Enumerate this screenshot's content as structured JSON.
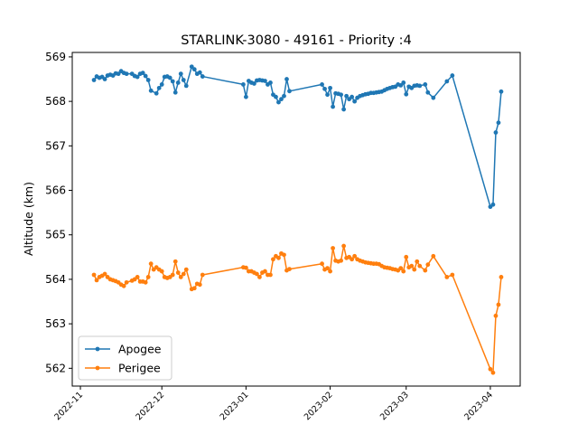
{
  "chart_data": {
    "type": "line",
    "title": "STARLINK-3080 - 49161 - Priority :4",
    "xlabel": "",
    "ylabel": "Altitude (km)",
    "x_ticks": [
      "2022-11",
      "2022-12",
      "2023-01",
      "2023-02",
      "2023-03",
      "2023-04"
    ],
    "y_ticks": [
      562,
      563,
      564,
      565,
      566,
      567,
      568,
      569
    ],
    "xlim": [
      "2022-10-29",
      "2023-04-12"
    ],
    "ylim": [
      561.6,
      569.1
    ],
    "grid": false,
    "legend": "lower-left",
    "series": [
      {
        "name": "Apogee",
        "color": "#1f77b4",
        "points": [
          [
            "2022-11-06",
            568.48
          ],
          [
            "2022-11-07",
            568.56
          ],
          [
            "2022-11-08",
            568.53
          ],
          [
            "2022-11-09",
            568.55
          ],
          [
            "2022-11-10",
            568.5
          ],
          [
            "2022-11-11",
            568.58
          ],
          [
            "2022-11-12",
            568.6
          ],
          [
            "2022-11-13",
            568.58
          ],
          [
            "2022-11-14",
            568.63
          ],
          [
            "2022-11-15",
            568.62
          ],
          [
            "2022-11-16",
            568.68
          ],
          [
            "2022-11-17",
            568.64
          ],
          [
            "2022-11-18",
            568.62
          ],
          [
            "2022-11-20",
            568.62
          ],
          [
            "2022-11-21",
            568.57
          ],
          [
            "2022-11-22",
            568.55
          ],
          [
            "2022-11-23",
            568.62
          ],
          [
            "2022-11-24",
            568.64
          ],
          [
            "2022-11-25",
            568.57
          ],
          [
            "2022-11-26",
            568.48
          ],
          [
            "2022-11-27",
            568.24
          ],
          [
            "2022-11-29",
            568.18
          ],
          [
            "2022-11-30",
            568.3
          ],
          [
            "2022-12-01",
            568.38
          ],
          [
            "2022-12-02",
            568.55
          ],
          [
            "2022-12-03",
            568.56
          ],
          [
            "2022-12-04",
            568.53
          ],
          [
            "2022-12-05",
            568.45
          ],
          [
            "2022-12-06",
            568.2
          ],
          [
            "2022-12-07",
            568.42
          ],
          [
            "2022-12-08",
            568.62
          ],
          [
            "2022-12-09",
            568.48
          ],
          [
            "2022-12-10",
            568.35
          ],
          [
            "2022-12-12",
            568.78
          ],
          [
            "2022-12-13",
            568.72
          ],
          [
            "2022-12-14",
            568.62
          ],
          [
            "2022-12-15",
            568.65
          ],
          [
            "2022-12-16",
            568.56
          ],
          [
            "2022-12-31",
            568.38
          ],
          [
            "2023-01-01",
            568.1
          ],
          [
            "2023-01-02",
            568.46
          ],
          [
            "2023-01-03",
            568.42
          ],
          [
            "2023-01-04",
            568.4
          ],
          [
            "2023-01-05",
            568.47
          ],
          [
            "2023-01-06",
            568.48
          ],
          [
            "2023-01-07",
            568.47
          ],
          [
            "2023-01-08",
            568.46
          ],
          [
            "2023-01-09",
            568.38
          ],
          [
            "2023-01-10",
            568.42
          ],
          [
            "2023-01-11",
            568.15
          ],
          [
            "2023-01-12",
            568.1
          ],
          [
            "2023-01-13",
            567.98
          ],
          [
            "2023-01-14",
            568.05
          ],
          [
            "2023-01-15",
            568.12
          ],
          [
            "2023-01-16",
            568.5
          ],
          [
            "2023-01-17",
            568.23
          ],
          [
            "2023-01-29",
            568.38
          ],
          [
            "2023-01-30",
            568.28
          ],
          [
            "2023-01-31",
            568.15
          ],
          [
            "2023-02-01",
            568.3
          ],
          [
            "2023-02-02",
            567.88
          ],
          [
            "2023-02-03",
            568.18
          ],
          [
            "2023-02-04",
            568.17
          ],
          [
            "2023-02-05",
            568.15
          ],
          [
            "2023-02-06",
            567.82
          ],
          [
            "2023-02-07",
            568.12
          ],
          [
            "2023-02-08",
            568.05
          ],
          [
            "2023-02-09",
            568.1
          ],
          [
            "2023-02-10",
            568.0
          ],
          [
            "2023-02-11",
            568.08
          ],
          [
            "2023-02-12",
            568.12
          ],
          [
            "2023-02-13",
            568.14
          ],
          [
            "2023-02-14",
            568.16
          ],
          [
            "2023-02-15",
            568.17
          ],
          [
            "2023-02-16",
            568.19
          ],
          [
            "2023-02-17",
            568.19
          ],
          [
            "2023-02-18",
            568.2
          ],
          [
            "2023-02-19",
            568.21
          ],
          [
            "2023-02-20",
            568.22
          ],
          [
            "2023-02-21",
            568.25
          ],
          [
            "2023-02-22",
            568.28
          ],
          [
            "2023-02-23",
            568.3
          ],
          [
            "2023-02-24",
            568.32
          ],
          [
            "2023-02-25",
            568.33
          ],
          [
            "2023-02-26",
            568.38
          ],
          [
            "2023-02-27",
            568.36
          ],
          [
            "2023-02-28",
            568.42
          ],
          [
            "2023-03-01",
            568.16
          ],
          [
            "2023-03-02",
            568.33
          ],
          [
            "2023-03-03",
            568.3
          ],
          [
            "2023-03-04",
            568.35
          ],
          [
            "2023-03-05",
            568.36
          ],
          [
            "2023-03-06",
            568.35
          ],
          [
            "2023-03-08",
            568.38
          ],
          [
            "2023-03-09",
            568.2
          ],
          [
            "2023-03-11",
            568.08
          ],
          [
            "2023-03-16",
            568.45
          ],
          [
            "2023-03-18",
            568.58
          ],
          [
            "2023-04-01",
            565.63
          ],
          [
            "2023-04-02",
            565.68
          ],
          [
            "2023-04-03",
            567.3
          ],
          [
            "2023-04-04",
            567.52
          ],
          [
            "2023-04-05",
            568.22
          ]
        ]
      },
      {
        "name": "Perigee",
        "color": "#ff7f0e",
        "points": [
          [
            "2022-11-06",
            564.1
          ],
          [
            "2022-11-07",
            563.98
          ],
          [
            "2022-11-08",
            564.05
          ],
          [
            "2022-11-09",
            564.08
          ],
          [
            "2022-11-10",
            564.12
          ],
          [
            "2022-11-11",
            564.05
          ],
          [
            "2022-11-12",
            564.0
          ],
          [
            "2022-11-13",
            563.98
          ],
          [
            "2022-11-14",
            563.96
          ],
          [
            "2022-11-15",
            563.93
          ],
          [
            "2022-11-16",
            563.88
          ],
          [
            "2022-11-17",
            563.85
          ],
          [
            "2022-11-18",
            563.93
          ],
          [
            "2022-11-20",
            563.97
          ],
          [
            "2022-11-21",
            564.0
          ],
          [
            "2022-11-22",
            564.05
          ],
          [
            "2022-11-23",
            563.95
          ],
          [
            "2022-11-24",
            563.95
          ],
          [
            "2022-11-25",
            563.93
          ],
          [
            "2022-11-26",
            564.05
          ],
          [
            "2022-11-27",
            564.35
          ],
          [
            "2022-11-28",
            564.22
          ],
          [
            "2022-11-29",
            564.27
          ],
          [
            "2022-11-30",
            564.22
          ],
          [
            "2022-12-01",
            564.18
          ],
          [
            "2022-12-02",
            564.05
          ],
          [
            "2022-12-03",
            564.03
          ],
          [
            "2022-12-04",
            564.05
          ],
          [
            "2022-12-05",
            564.1
          ],
          [
            "2022-12-06",
            564.4
          ],
          [
            "2022-12-07",
            564.15
          ],
          [
            "2022-12-08",
            564.05
          ],
          [
            "2022-12-09",
            564.12
          ],
          [
            "2022-12-10",
            564.22
          ],
          [
            "2022-12-12",
            563.78
          ],
          [
            "2022-12-13",
            563.8
          ],
          [
            "2022-12-14",
            563.9
          ],
          [
            "2022-12-15",
            563.88
          ],
          [
            "2022-12-16",
            564.1
          ],
          [
            "2022-12-31",
            564.27
          ],
          [
            "2023-01-01",
            564.26
          ],
          [
            "2023-01-02",
            564.18
          ],
          [
            "2023-01-03",
            564.18
          ],
          [
            "2023-01-04",
            564.15
          ],
          [
            "2023-01-05",
            564.12
          ],
          [
            "2023-01-06",
            564.05
          ],
          [
            "2023-01-07",
            564.15
          ],
          [
            "2023-01-08",
            564.18
          ],
          [
            "2023-01-09",
            564.1
          ],
          [
            "2023-01-10",
            564.1
          ],
          [
            "2023-01-11",
            564.45
          ],
          [
            "2023-01-12",
            564.52
          ],
          [
            "2023-01-13",
            564.48
          ],
          [
            "2023-01-14",
            564.58
          ],
          [
            "2023-01-15",
            564.55
          ],
          [
            "2023-01-16",
            564.2
          ],
          [
            "2023-01-17",
            564.23
          ],
          [
            "2023-01-29",
            564.35
          ],
          [
            "2023-01-30",
            564.22
          ],
          [
            "2023-01-31",
            564.25
          ],
          [
            "2023-02-01",
            564.18
          ],
          [
            "2023-02-02",
            564.7
          ],
          [
            "2023-02-03",
            564.42
          ],
          [
            "2023-02-04",
            564.4
          ],
          [
            "2023-02-05",
            564.42
          ],
          [
            "2023-02-06",
            564.75
          ],
          [
            "2023-02-07",
            564.48
          ],
          [
            "2023-02-08",
            564.5
          ],
          [
            "2023-02-09",
            564.45
          ],
          [
            "2023-02-10",
            564.52
          ],
          [
            "2023-02-11",
            564.45
          ],
          [
            "2023-02-12",
            564.42
          ],
          [
            "2023-02-13",
            564.4
          ],
          [
            "2023-02-14",
            564.38
          ],
          [
            "2023-02-15",
            564.37
          ],
          [
            "2023-02-16",
            564.36
          ],
          [
            "2023-02-17",
            564.35
          ],
          [
            "2023-02-18",
            564.35
          ],
          [
            "2023-02-19",
            564.34
          ],
          [
            "2023-02-20",
            564.3
          ],
          [
            "2023-02-21",
            564.27
          ],
          [
            "2023-02-22",
            564.26
          ],
          [
            "2023-02-23",
            564.25
          ],
          [
            "2023-02-24",
            564.23
          ],
          [
            "2023-02-25",
            564.22
          ],
          [
            "2023-02-26",
            564.2
          ],
          [
            "2023-02-27",
            564.25
          ],
          [
            "2023-02-28",
            564.18
          ],
          [
            "2023-03-01",
            564.5
          ],
          [
            "2023-03-02",
            564.27
          ],
          [
            "2023-03-03",
            564.3
          ],
          [
            "2023-03-04",
            564.22
          ],
          [
            "2023-03-05",
            564.4
          ],
          [
            "2023-03-06",
            564.3
          ],
          [
            "2023-03-08",
            564.2
          ],
          [
            "2023-03-09",
            564.33
          ],
          [
            "2023-03-11",
            564.52
          ],
          [
            "2023-03-16",
            564.05
          ],
          [
            "2023-03-18",
            564.1
          ],
          [
            "2023-04-01",
            561.98
          ],
          [
            "2023-04-02",
            561.9
          ],
          [
            "2023-04-03",
            563.18
          ],
          [
            "2023-04-04",
            563.43
          ],
          [
            "2023-04-05",
            564.05
          ]
        ]
      }
    ]
  }
}
